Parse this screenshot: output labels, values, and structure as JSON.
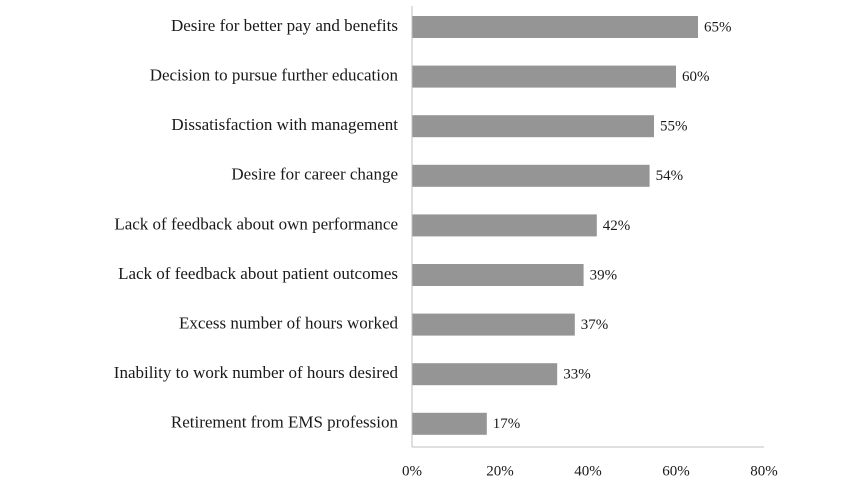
{
  "chart_data": {
    "type": "bar",
    "orientation": "horizontal",
    "title": "",
    "xlabel": "",
    "ylabel": "",
    "categories": [
      "Desire for better pay and benefits",
      "Decision to pursue further education",
      "Dissatisfaction with management",
      "Desire for career change",
      "Lack of feedback about own performance",
      "Lack of feedback about patient outcomes",
      "Excess number of hours worked",
      "Inability to work number of hours desired",
      "Retirement from EMS profession"
    ],
    "values": [
      65,
      60,
      55,
      54,
      42,
      39,
      37,
      33,
      17
    ],
    "value_labels": [
      "65%",
      "60%",
      "55%",
      "54%",
      "42%",
      "39%",
      "37%",
      "33%",
      "17%"
    ],
    "xlim": [
      0,
      80
    ],
    "x_ticks": [
      0,
      20,
      40,
      60,
      80
    ],
    "x_tick_labels": [
      "0%",
      "20%",
      "40%",
      "60%",
      "80%"
    ],
    "grid": false,
    "legend": "none",
    "bar_color": "#959595",
    "axis_color": "#bfbfbf"
  }
}
